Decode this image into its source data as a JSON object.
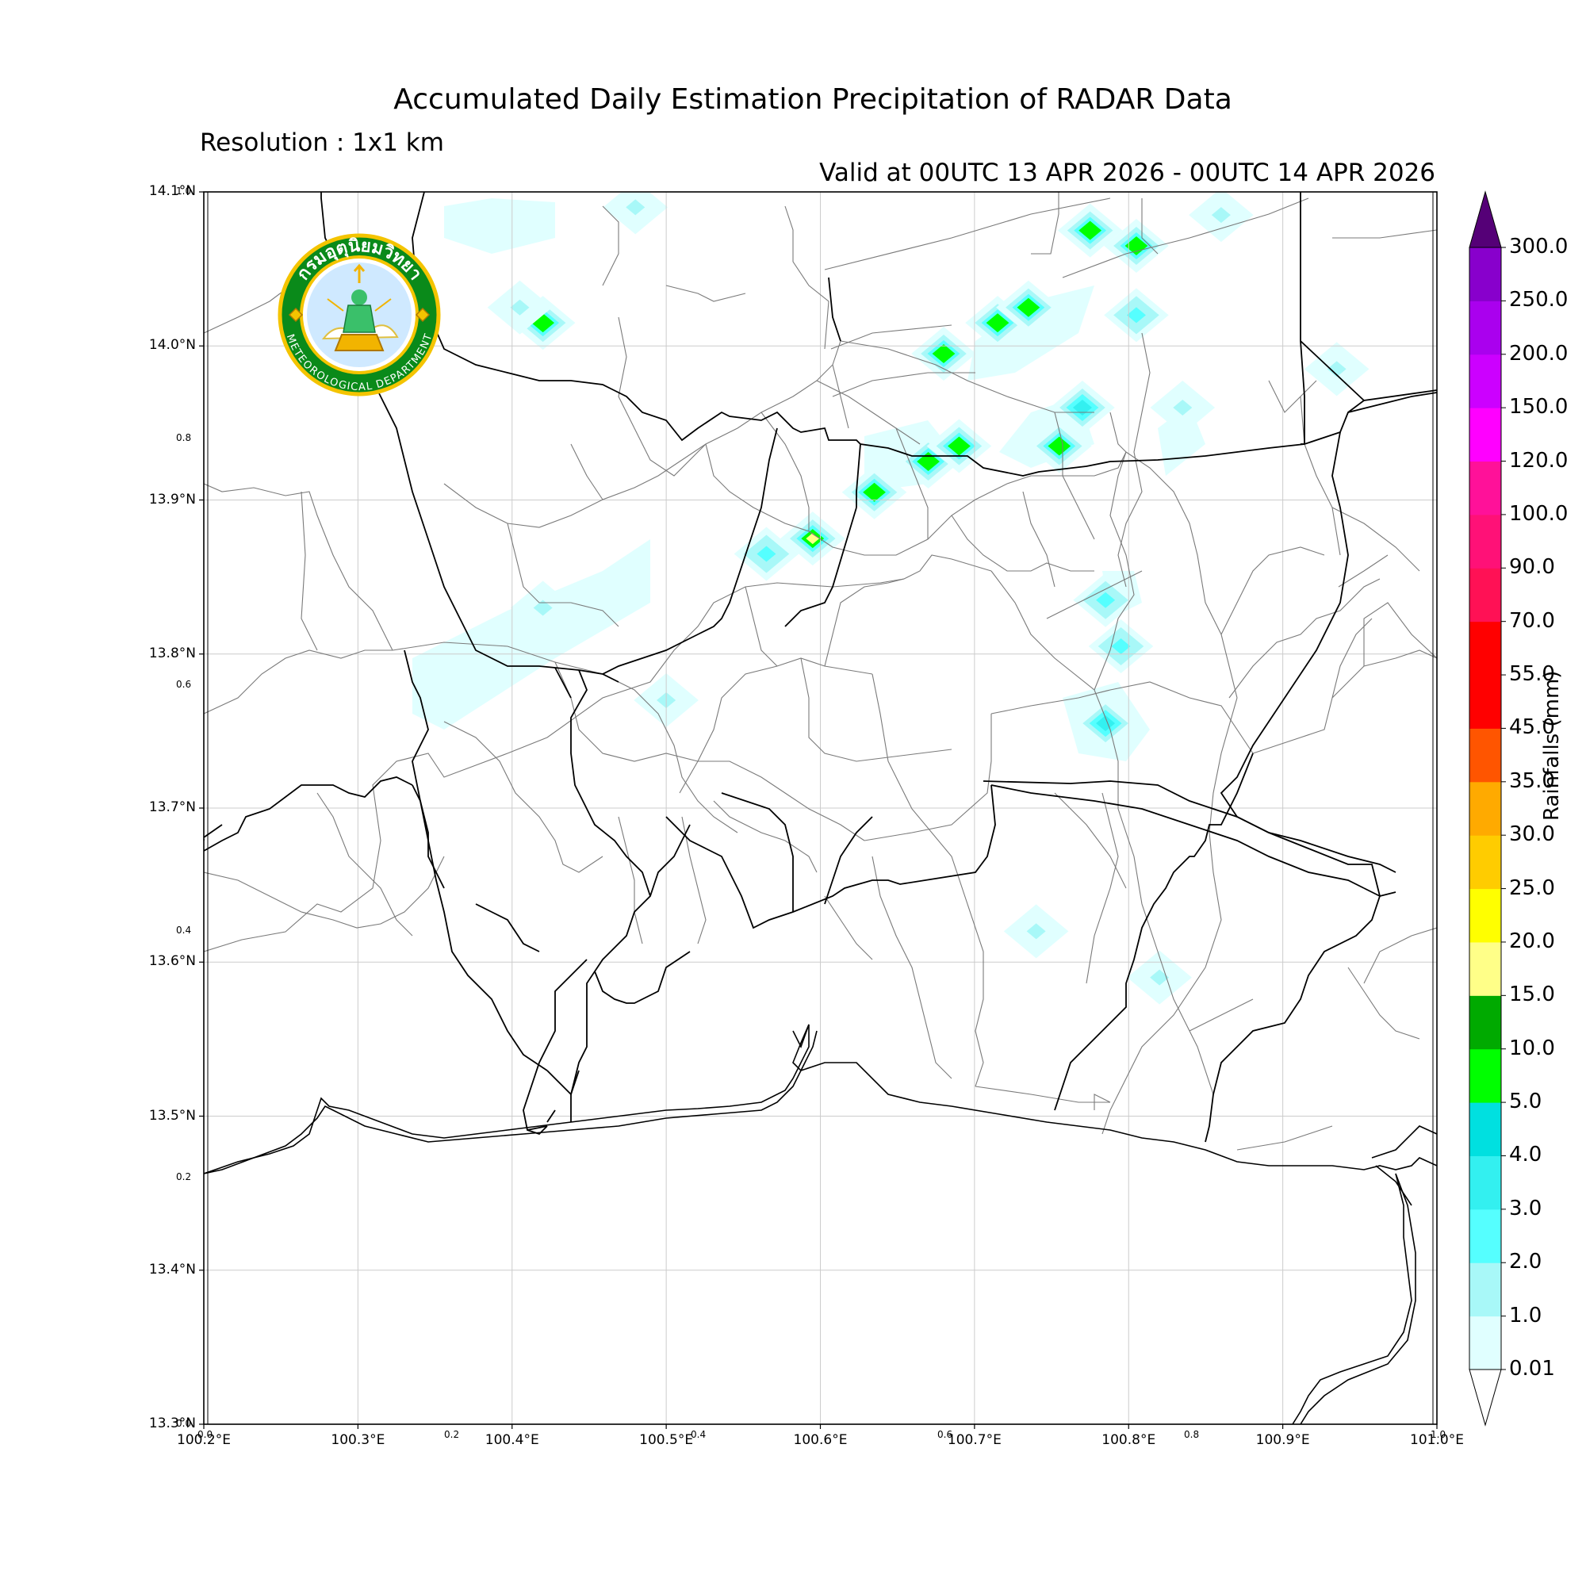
{
  "title": "Accumulated Daily Estimation Precipitation of RADAR Data",
  "subtitle": "Resolution : 1x1 km",
  "valid": "Valid at 00UTC 13 APR 2026 - 00UTC 14 APR 2026",
  "logo": {
    "top_text": "กรมอุตุนิยมวิทยา",
    "bottom_text": "METEOROLOGICAL DEPARTMENT"
  },
  "axes": {
    "lon_labels": [
      "100.2°E",
      "100.3°E",
      "100.4°E",
      "100.5°E",
      "100.6°E",
      "100.7°E",
      "100.8°E",
      "100.9°E",
      "101.0°E"
    ],
    "lat_labels": [
      "14.1°N",
      "14.0°N",
      "13.9°N",
      "13.8°N",
      "13.7°N",
      "13.6°N",
      "13.5°N",
      "13.4°N",
      "13.3°N"
    ],
    "lon_range": [
      100.2,
      101.0
    ],
    "lat_range": [
      13.3,
      14.1
    ],
    "inner_x_ticks": [
      "0.0",
      "0.2",
      "0.4",
      "0.6",
      "0.8",
      "1.0"
    ],
    "inner_y_ticks": [
      "1.0",
      "0.8",
      "0.6",
      "0.4",
      "0.2",
      "0.0"
    ],
    "grid": true
  },
  "colorbar": {
    "title": "Rainfalls (mm)",
    "levels": [
      "0.01",
      "1.0",
      "2.0",
      "3.0",
      "4.0",
      "5.0",
      "10.0",
      "15.0",
      "20.0",
      "25.0",
      "30.0",
      "35.0",
      "45.0",
      "55.0",
      "70.0",
      "90.0",
      "100.0",
      "120.0",
      "150.0",
      "200.0",
      "250.0",
      "300.0"
    ],
    "colors": [
      "#e0ffff",
      "#a8f8f8",
      "#55ffff",
      "#33f0f0",
      "#00e0e0",
      "#00ff00",
      "#00aa00",
      "#ffff88",
      "#ffff00",
      "#ffcc00",
      "#ffaa00",
      "#ff5500",
      "#ff0000",
      "#ff0000",
      "#ff1155",
      "#ff1177",
      "#ff1199",
      "#ff00ff",
      "#cc00ff",
      "#aa00ee",
      "#8800cc",
      "#6600aa"
    ],
    "under_color": "#ffffff",
    "over_color": "#550077"
  },
  "chart_data": {
    "type": "heatmap",
    "x_unit": "°E",
    "y_unit": "°N",
    "rain_cells": [
      {
        "lon": 100.48,
        "lat": 14.09,
        "mm": 1.0
      },
      {
        "lon": 100.42,
        "lat": 14.015,
        "mm": 5.0
      },
      {
        "lon": 100.405,
        "lat": 14.025,
        "mm": 1.0
      },
      {
        "lon": 100.68,
        "lat": 13.995,
        "mm": 5.0
      },
      {
        "lon": 100.715,
        "lat": 14.015,
        "mm": 5.0
      },
      {
        "lon": 100.735,
        "lat": 14.025,
        "mm": 5.0
      },
      {
        "lon": 100.775,
        "lat": 14.075,
        "mm": 5.0
      },
      {
        "lon": 100.805,
        "lat": 14.065,
        "mm": 5.0
      },
      {
        "lon": 100.805,
        "lat": 14.02,
        "mm": 2.0
      },
      {
        "lon": 100.86,
        "lat": 14.085,
        "mm": 1.0
      },
      {
        "lon": 100.835,
        "lat": 13.96,
        "mm": 1.0
      },
      {
        "lon": 100.935,
        "lat": 13.985,
        "mm": 1.0
      },
      {
        "lon": 100.755,
        "lat": 13.935,
        "mm": 5.0
      },
      {
        "lon": 100.77,
        "lat": 13.96,
        "mm": 3.0
      },
      {
        "lon": 100.67,
        "lat": 13.925,
        "mm": 5.0
      },
      {
        "lon": 100.69,
        "lat": 13.935,
        "mm": 5.0
      },
      {
        "lon": 100.635,
        "lat": 13.905,
        "mm": 5.0
      },
      {
        "lon": 100.595,
        "lat": 13.875,
        "mm": 15.0
      },
      {
        "lon": 100.565,
        "lat": 13.865,
        "mm": 2.0
      },
      {
        "lon": 100.785,
        "lat": 13.835,
        "mm": 2.0
      },
      {
        "lon": 100.795,
        "lat": 13.805,
        "mm": 2.0
      },
      {
        "lon": 100.785,
        "lat": 13.755,
        "mm": 3.0
      },
      {
        "lon": 100.42,
        "lat": 13.83,
        "mm": 1.0
      },
      {
        "lon": 100.5,
        "lat": 13.77,
        "mm": 1.0
      },
      {
        "lon": 100.74,
        "lat": 13.62,
        "mm": 1.0
      },
      {
        "lon": 100.82,
        "lat": 13.59,
        "mm": 1.0
      }
    ]
  }
}
